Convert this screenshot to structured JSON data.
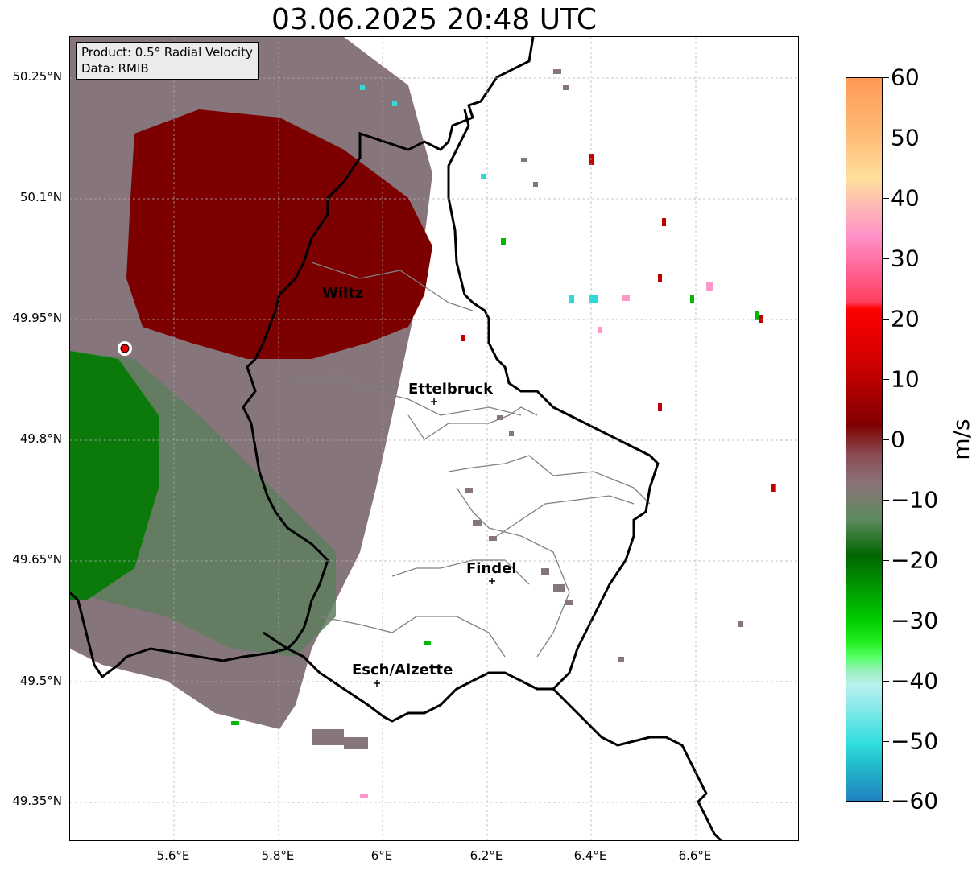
{
  "title": "03.06.2025 20:48 UTC",
  "info": {
    "product": "Product: 0.5° Radial Velocity",
    "source": "Data: RMIB"
  },
  "lat_ticks": [
    "50.25°N",
    "50.1°N",
    "49.95°N",
    "49.8°N",
    "49.65°N",
    "49.5°N",
    "49.35°N"
  ],
  "lon_ticks": [
    "5.6°E",
    "5.8°E",
    "6°E",
    "6.2°E",
    "6.4°E",
    "6.6°E"
  ],
  "cities": [
    {
      "name": "Wiltz"
    },
    {
      "name": "Ettelbruck"
    },
    {
      "name": "Findel"
    },
    {
      "name": "Esch/Alzette"
    }
  ],
  "colorbar": {
    "unit": "m/s",
    "tick_labels": [
      "60",
      "50",
      "40",
      "30",
      "20",
      "10",
      "0",
      "−10",
      "−20",
      "−30",
      "−40",
      "−50",
      "−60"
    ],
    "range": [
      -60,
      60
    ]
  },
  "colors": {
    "outbound_strong": "#7a0000",
    "outbound_mid": "#cc0000",
    "near_zero": "#8a7378",
    "inbound_weak": "#5e8a5e",
    "inbound_strong": "#007a00",
    "border": "#000000",
    "admin_border": "#808080"
  }
}
